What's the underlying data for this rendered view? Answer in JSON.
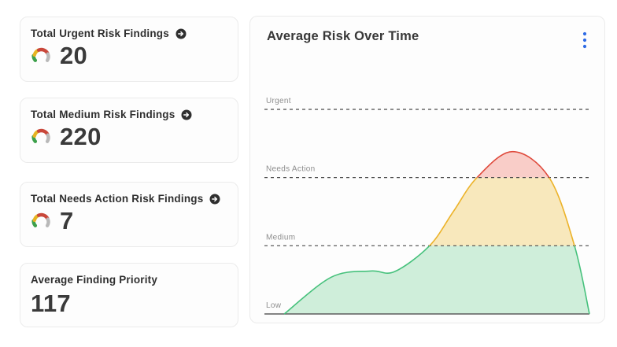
{
  "summary_cards": [
    {
      "title": "Total Urgent Risk Findings",
      "value": "20",
      "has_gauge": true,
      "has_link": true
    },
    {
      "title": "Total Medium Risk Findings",
      "value": "220",
      "has_gauge": true,
      "has_link": true
    },
    {
      "title": "Total Needs Action Risk Findings",
      "value": "7",
      "has_gauge": true,
      "has_link": true
    },
    {
      "title": "Average Finding Priority",
      "value": "117",
      "has_gauge": false,
      "has_link": false
    }
  ],
  "chart": {
    "title": "Average Risk Over Time",
    "menu_icon": "kebab-vertical",
    "chart_data": {
      "type": "area",
      "title": "Average Risk Over Time",
      "xlabel": "",
      "ylabel": "",
      "x_tick_labels": [],
      "y_levels": [
        {
          "label": "Low",
          "value": 0,
          "line": "solid"
        },
        {
          "label": "Medium",
          "value": 1,
          "line": "dashed"
        },
        {
          "label": "Needs Action",
          "value": 2,
          "line": "dashed"
        },
        {
          "label": "Urgent",
          "value": 3,
          "line": "dashed"
        }
      ],
      "series": [
        {
          "name": "Average Risk",
          "x": [
            0.061,
            0.206,
            0.327,
            0.4,
            0.508,
            0.581,
            0.654,
            0.763,
            0.876,
            0.954,
            1.0
          ],
          "y": [
            0.0,
            0.54,
            0.63,
            0.62,
            1.0,
            1.5,
            2.0,
            2.38,
            2.0,
            1.0,
            0.0
          ]
        }
      ],
      "band_colors": {
        "low_fill": "#cfeeda",
        "low_stroke": "#46c17c",
        "medium_fill": "#f8e8bc",
        "medium_stroke": "#ecb32a",
        "high_fill": "#f9cdc8",
        "high_stroke": "#df4a3c"
      },
      "grid": {
        "dash_color": "#4a4a4a",
        "baseline_color": "#5c5c5c",
        "label_color": "#8d8d8d",
        "legend": "none"
      }
    }
  },
  "icons": {
    "gauge": {
      "green": "#3da04b",
      "yellow": "#e6b422",
      "red": "#c9473a",
      "gray": "#b9b9b9"
    },
    "link_arrow_bg": "#2f2f2f",
    "link_arrow_fg": "#ffffff",
    "kebab_color": "#2e6be5"
  },
  "colors": {
    "page_bg": "#ffffff",
    "card_bg": "#fdfdfd",
    "card_border": "#ebebeb",
    "title_text": "#2f2f2f",
    "value_text": "#3a3a3a"
  }
}
